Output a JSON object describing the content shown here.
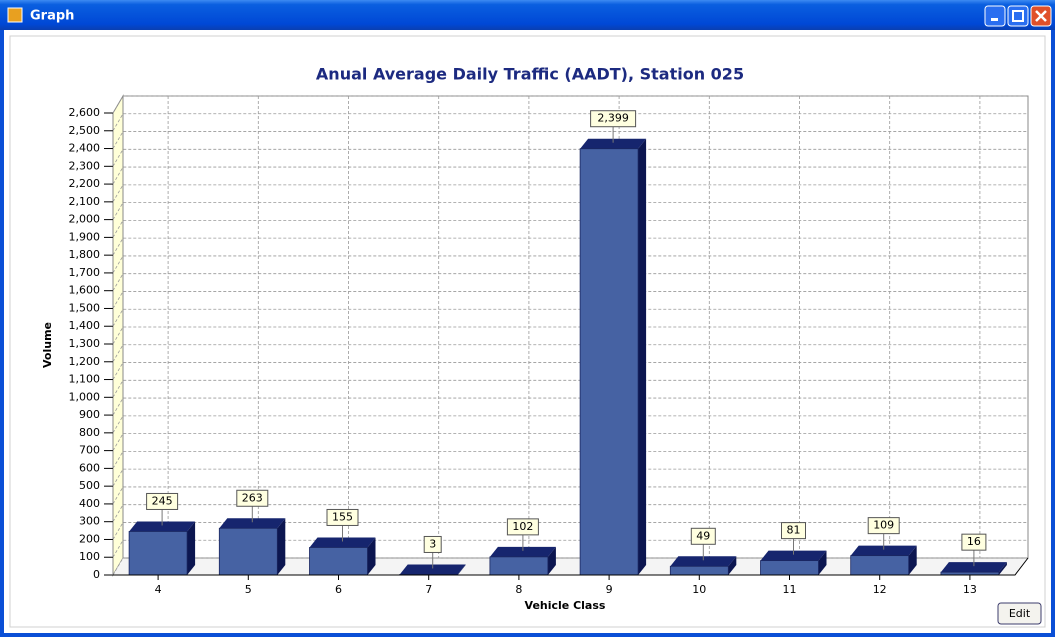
{
  "window": {
    "title": "Graph",
    "edit_button": "Edit"
  },
  "chart_data": {
    "type": "bar3d",
    "title": "Anual Average Daily Traffic (AADT), Station 025",
    "x_label": "Vehicle Class",
    "y_label": "Volume",
    "categories": [
      "4",
      "5",
      "6",
      "7",
      "8",
      "9",
      "10",
      "11",
      "12",
      "13"
    ],
    "values": [
      245,
      263,
      155,
      3,
      102,
      2399,
      49,
      81,
      109,
      16
    ],
    "value_labels": [
      "245",
      "263",
      "155",
      "3",
      "102",
      "2,399",
      "49",
      "81",
      "109",
      "16"
    ],
    "color": "#4662a3",
    "ylim": [
      0,
      2600
    ],
    "yticks": [
      0,
      100,
      200,
      300,
      400,
      500,
      600,
      700,
      800,
      900,
      {
        "value": 1000,
        "label": "1,000"
      },
      {
        "value": 1100,
        "label": "1,100"
      },
      {
        "value": 1200,
        "label": "1,200"
      },
      {
        "value": 1300,
        "label": "1,300"
      },
      {
        "value": 1400,
        "label": "1,400"
      },
      {
        "value": 1500,
        "label": "1,500"
      },
      {
        "value": 1600,
        "label": "1,600"
      },
      {
        "value": 1700,
        "label": "1,700"
      },
      {
        "value": 1800,
        "label": "1,800"
      },
      {
        "value": 1900,
        "label": "1,900"
      },
      {
        "value": 2000,
        "label": "2,000"
      },
      {
        "value": 2100,
        "label": "2,100"
      },
      {
        "value": 2200,
        "label": "2,200"
      },
      {
        "value": 2300,
        "label": "2,300"
      },
      {
        "value": 2400,
        "label": "2,400"
      },
      {
        "value": 2500,
        "label": "2,500"
      },
      {
        "value": 2600,
        "label": "2,600"
      }
    ],
    "grid": true
  }
}
